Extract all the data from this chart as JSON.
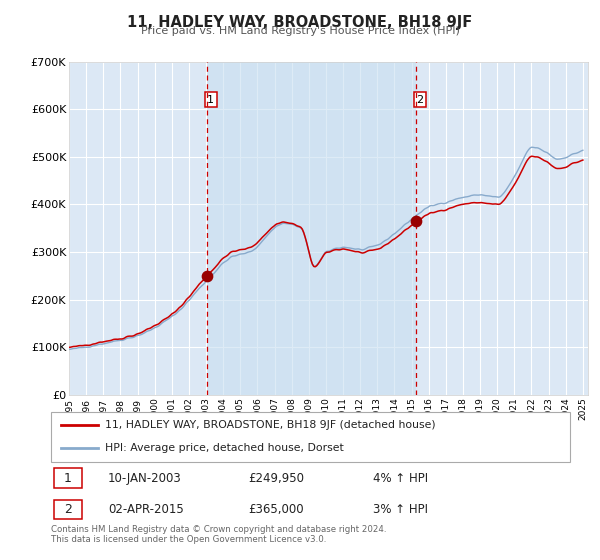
{
  "title": "11, HADLEY WAY, BROADSTONE, BH18 9JF",
  "subtitle": "Price paid vs. HM Land Registry's House Price Index (HPI)",
  "background_color": "#ffffff",
  "plot_bg_color": "#dce8f5",
  "grid_color": "#ffffff",
  "year_start": 1995,
  "year_end": 2025,
  "ylim": [
    0,
    700000
  ],
  "yticks": [
    0,
    100000,
    200000,
    300000,
    400000,
    500000,
    600000,
    700000
  ],
  "ytick_labels": [
    "£0",
    "£100K",
    "£200K",
    "£300K",
    "£400K",
    "£500K",
    "£600K",
    "£700K"
  ],
  "purchase1_date": "10-JAN-2003",
  "purchase1_price": 249950,
  "purchase1_hpi": "4% ↑ HPI",
  "purchase1_year": 2003.03,
  "purchase2_date": "02-APR-2015",
  "purchase2_price": 365000,
  "purchase2_hpi": "3% ↑ HPI",
  "purchase2_year": 2015.25,
  "red_line_color": "#cc0000",
  "blue_line_color": "#88aacc",
  "dot_color": "#990000",
  "vline_color": "#cc0000",
  "legend_label_red": "11, HADLEY WAY, BROADSTONE, BH18 9JF (detached house)",
  "legend_label_blue": "HPI: Average price, detached house, Dorset",
  "footnote": "Contains HM Land Registry data © Crown copyright and database right 2024.\nThis data is licensed under the Open Government Licence v3.0."
}
